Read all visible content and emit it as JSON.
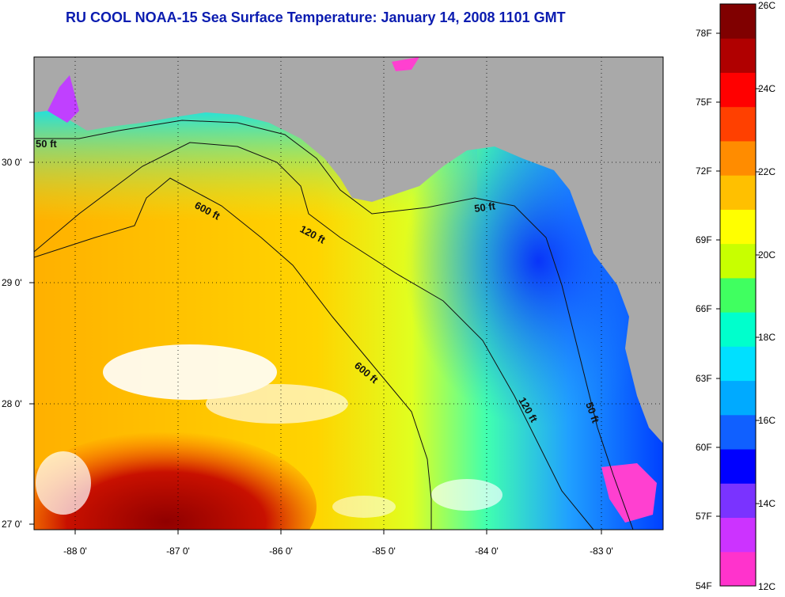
{
  "title": "RU COOL  NOAA-15  Sea Surface Temperature:  January 14, 2008 1101 GMT",
  "map": {
    "lon_ticks": [
      "-88 0'",
      "-87 0'",
      "-86 0'",
      "-85 0'",
      "-84 0'",
      "-83 0'"
    ],
    "lat_ticks": [
      "30 0'",
      "29 0'",
      "28 0'",
      "27 0'"
    ],
    "contour_labels": [
      "50 ft",
      "600 ft",
      "120 ft",
      "50 ft",
      "600 ft",
      "120 ft",
      "50 ft"
    ]
  },
  "colorbar": {
    "fahrenheit_ticks": [
      "78F",
      "75F",
      "72F",
      "69F",
      "66F",
      "63F",
      "60F",
      "57F",
      "54F"
    ],
    "celsius_ticks": [
      "26C",
      "24C",
      "22C",
      "20C",
      "18C",
      "16C",
      "14C",
      "12C"
    ],
    "colors": [
      "#ff33cc",
      "#cc33ff",
      "#7a33ff",
      "#0000ff",
      "#1060ff",
      "#00aaff",
      "#00e0ff",
      "#00ffcc",
      "#40ff60",
      "#c8ff00",
      "#ffff00",
      "#ffc000",
      "#ff8c00",
      "#ff4000",
      "#ff0000",
      "#b00000",
      "#800000"
    ]
  },
  "colors": {
    "land": "#a9a9a9",
    "title": "#0b1cb0",
    "cloud": "#ffffff"
  }
}
